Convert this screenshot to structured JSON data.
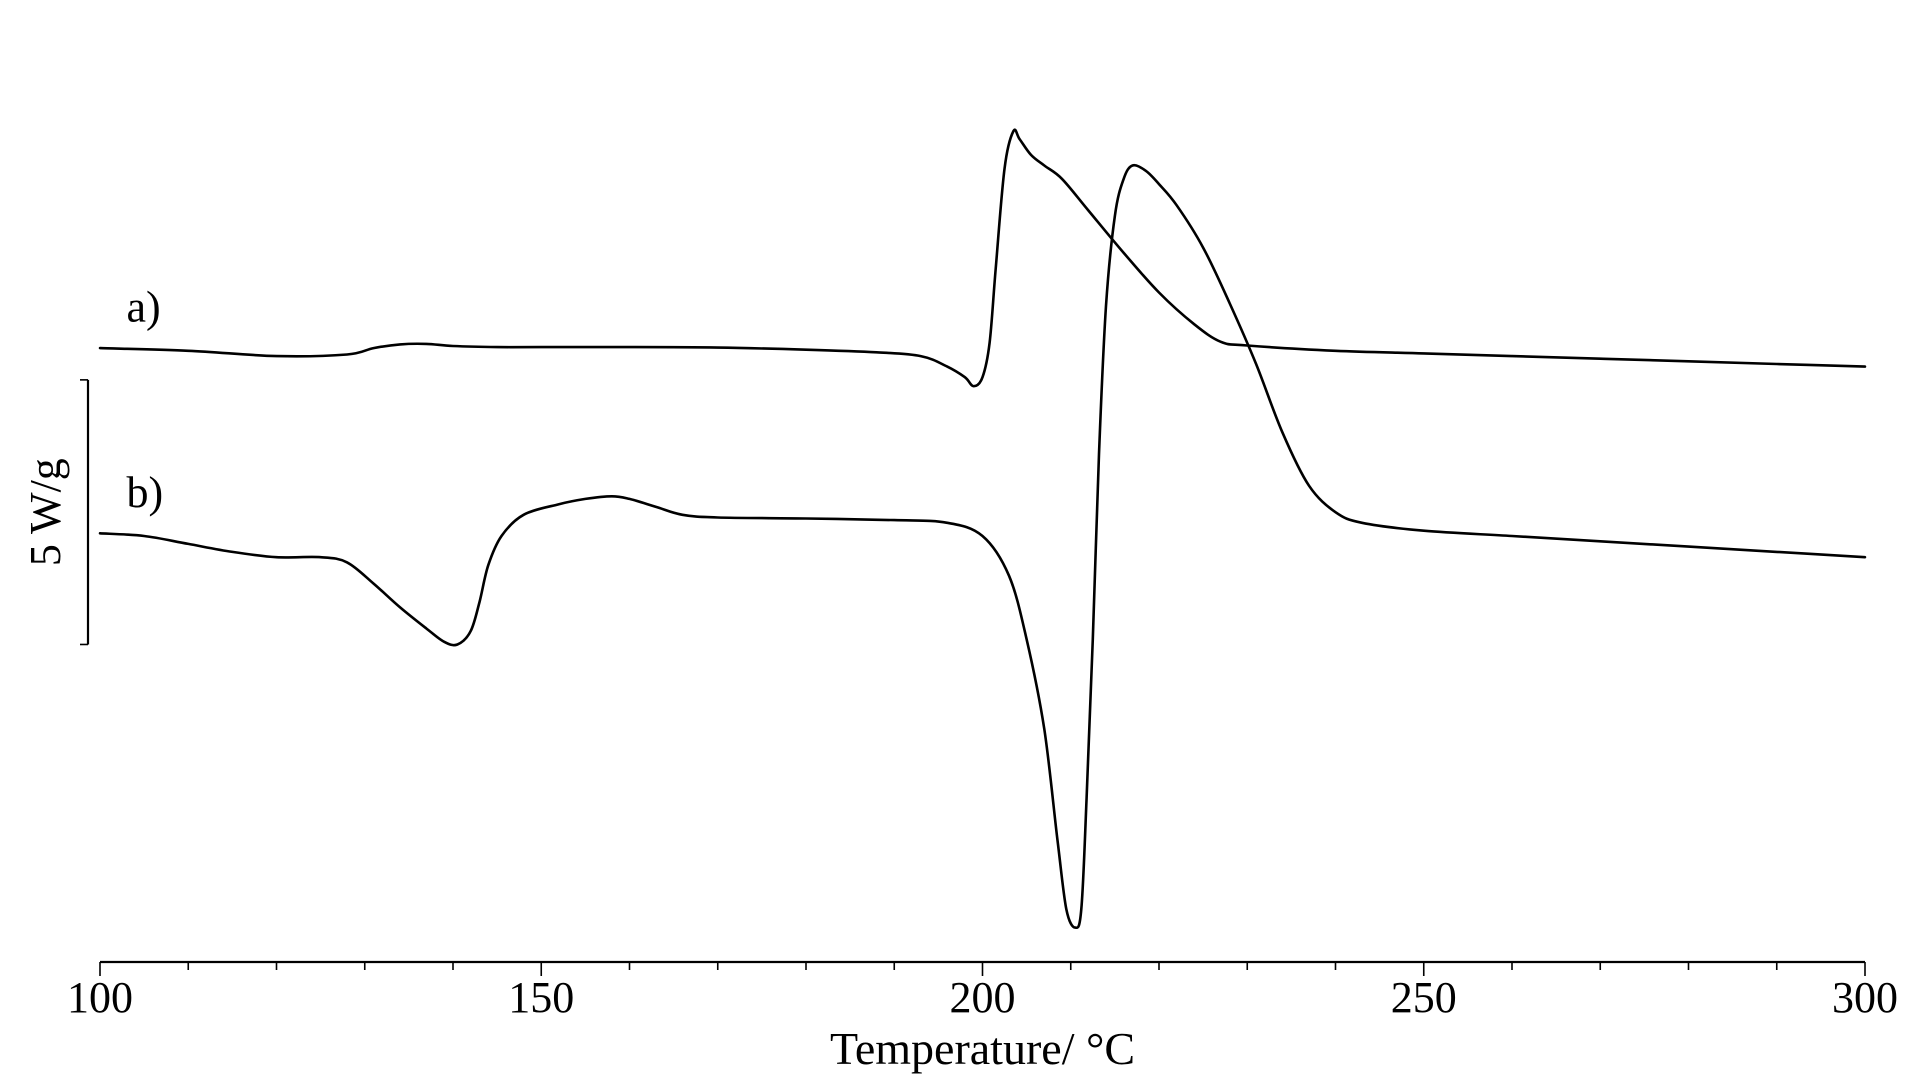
{
  "chart_data": {
    "type": "line",
    "xlabel": "Temperature/ °C",
    "xlim": [
      100,
      300
    ],
    "xticks_major": [
      100,
      150,
      200,
      250,
      300
    ],
    "xticks_minor": [
      110,
      120,
      130,
      140,
      160,
      170,
      180,
      190,
      210,
      220,
      230,
      240,
      260,
      270,
      280,
      290
    ],
    "y_units": "W/g",
    "ylim": [
      -11.6,
      6.2
    ],
    "scale_bar": {
      "label": "5 W/g",
      "value": 5,
      "y_from": -5.6,
      "y_to": -0.6
    },
    "series": [
      {
        "label": "a)",
        "label_pos": [
          103,
          0.5
        ],
        "points": [
          [
            100,
            0
          ],
          [
            110,
            -0.05
          ],
          [
            120,
            -0.15
          ],
          [
            128,
            -0.12
          ],
          [
            131,
            0.0
          ],
          [
            134,
            0.07
          ],
          [
            137,
            0.08
          ],
          [
            140,
            0.04
          ],
          [
            145,
            0.02
          ],
          [
            150,
            0.02
          ],
          [
            160,
            0.02
          ],
          [
            170,
            0.01
          ],
          [
            180,
            -0.03
          ],
          [
            188,
            -0.08
          ],
          [
            193,
            -0.15
          ],
          [
            196,
            -0.35
          ],
          [
            198,
            -0.55
          ],
          [
            199,
            -0.72
          ],
          [
            200,
            -0.55
          ],
          [
            200.8,
            0.1
          ],
          [
            201.5,
            1.5
          ],
          [
            202.5,
            3.4
          ],
          [
            203.5,
            4.1
          ],
          [
            204.2,
            3.95
          ],
          [
            205.5,
            3.65
          ],
          [
            207,
            3.45
          ],
          [
            209,
            3.2
          ],
          [
            212,
            2.6
          ],
          [
            216,
            1.8
          ],
          [
            220,
            1.05
          ],
          [
            224,
            0.45
          ],
          [
            227,
            0.12
          ],
          [
            230,
            0.05
          ],
          [
            240,
            -0.05
          ],
          [
            250,
            -0.1
          ],
          [
            260,
            -0.15
          ],
          [
            270,
            -0.2
          ],
          [
            280,
            -0.25
          ],
          [
            290,
            -0.3
          ],
          [
            300,
            -0.35
          ]
        ]
      },
      {
        "label": "b)",
        "label_pos": [
          103,
          -3.0
        ],
        "points": [
          [
            100,
            -3.5
          ],
          [
            105,
            -3.55
          ],
          [
            110,
            -3.7
          ],
          [
            115,
            -3.85
          ],
          [
            120,
            -3.95
          ],
          [
            125,
            -3.95
          ],
          [
            128,
            -4.05
          ],
          [
            131,
            -4.45
          ],
          [
            134,
            -4.9
          ],
          [
            137,
            -5.3
          ],
          [
            139,
            -5.55
          ],
          [
            140.5,
            -5.6
          ],
          [
            142,
            -5.35
          ],
          [
            143,
            -4.8
          ],
          [
            144,
            -4.1
          ],
          [
            145.5,
            -3.55
          ],
          [
            148,
            -3.15
          ],
          [
            152,
            -2.95
          ],
          [
            155,
            -2.85
          ],
          [
            158,
            -2.8
          ],
          [
            160,
            -2.85
          ],
          [
            163,
            -3.0
          ],
          [
            166,
            -3.15
          ],
          [
            170,
            -3.2
          ],
          [
            180,
            -3.22
          ],
          [
            190,
            -3.25
          ],
          [
            196,
            -3.3
          ],
          [
            200,
            -3.55
          ],
          [
            203,
            -4.3
          ],
          [
            205,
            -5.5
          ],
          [
            207,
            -7.2
          ],
          [
            208.5,
            -9.3
          ],
          [
            209.5,
            -10.6
          ],
          [
            210.5,
            -10.95
          ],
          [
            211.2,
            -10.6
          ],
          [
            211.8,
            -8.5
          ],
          [
            212.5,
            -5.5
          ],
          [
            213.2,
            -2.0
          ],
          [
            214,
            0.8
          ],
          [
            215,
            2.5
          ],
          [
            216,
            3.2
          ],
          [
            217,
            3.45
          ],
          [
            218.5,
            3.35
          ],
          [
            220,
            3.1
          ],
          [
            222,
            2.7
          ],
          [
            225,
            1.9
          ],
          [
            228,
            0.85
          ],
          [
            231,
            -0.3
          ],
          [
            234,
            -1.6
          ],
          [
            237,
            -2.6
          ],
          [
            240,
            -3.1
          ],
          [
            243,
            -3.3
          ],
          [
            250,
            -3.45
          ],
          [
            260,
            -3.55
          ],
          [
            270,
            -3.65
          ],
          [
            280,
            -3.75
          ],
          [
            290,
            -3.85
          ],
          [
            300,
            -3.95
          ]
        ]
      }
    ],
    "grid": false,
    "legend": "none"
  }
}
